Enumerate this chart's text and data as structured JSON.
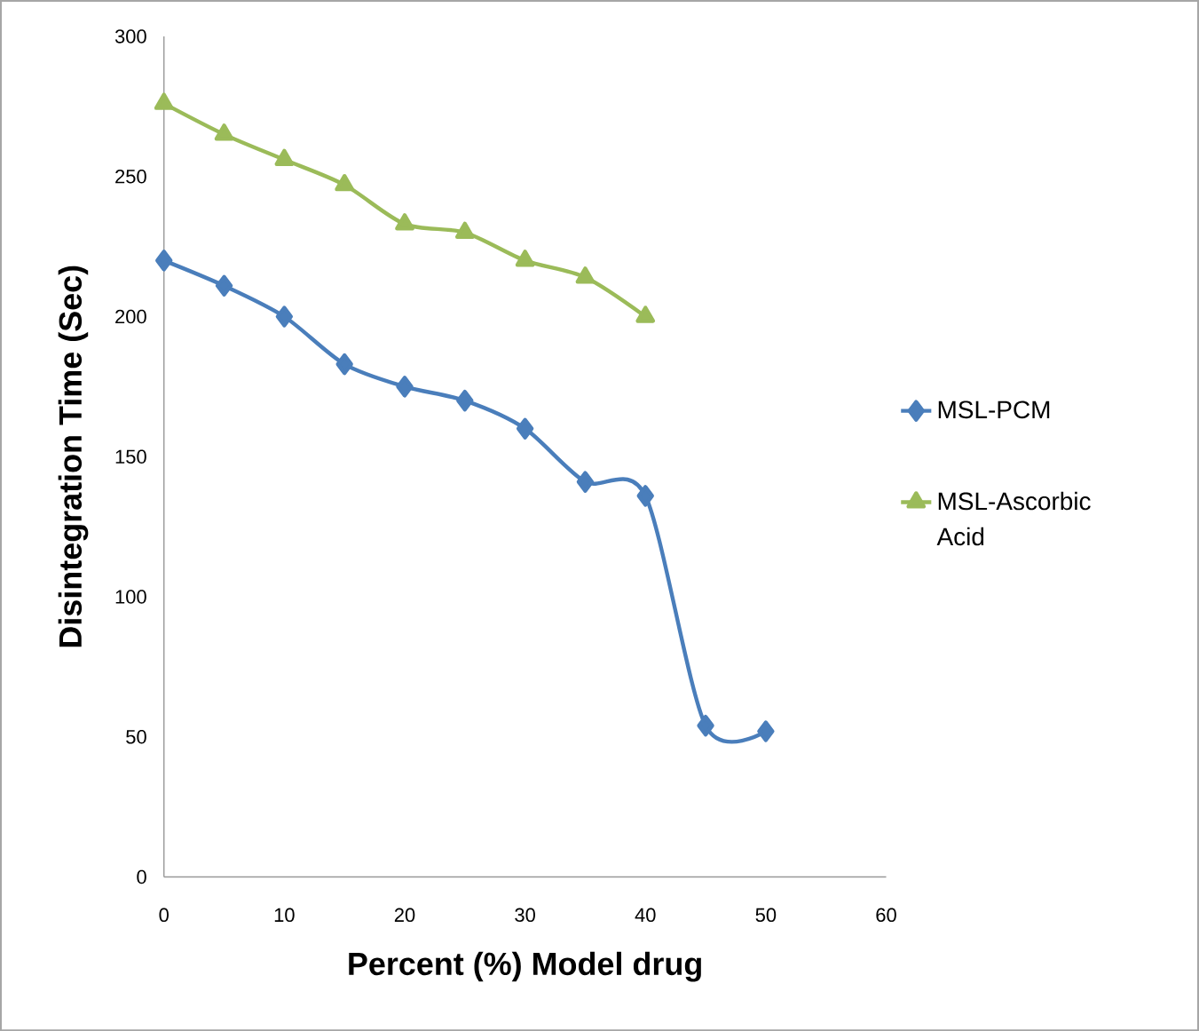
{
  "chart_data": {
    "type": "line",
    "xlabel": "Percent (%) Model drug",
    "ylabel": "Disintegration Time (Sec)",
    "x": [
      0,
      5,
      10,
      15,
      20,
      25,
      30,
      35,
      40,
      45,
      50
    ],
    "series": [
      {
        "name": "MSL-PCM",
        "color": "#4a7ebb",
        "marker": "diamond",
        "values": [
          220,
          211,
          200,
          183,
          175,
          170,
          160,
          141,
          136,
          54,
          52
        ]
      },
      {
        "name": "MSL-Ascorbic Acid",
        "color": "#9bbb59",
        "marker": "triangle",
        "values": [
          276,
          265,
          256,
          247,
          233,
          230,
          220,
          214,
          200,
          null,
          null
        ]
      }
    ],
    "xlim": [
      0,
      60
    ],
    "xticks": [
      0,
      10,
      20,
      30,
      40,
      50,
      60
    ],
    "ylim": [
      0,
      300
    ],
    "yticks": [
      0,
      50,
      100,
      150,
      200,
      250,
      300
    ],
    "grid": false,
    "legend": "right"
  }
}
